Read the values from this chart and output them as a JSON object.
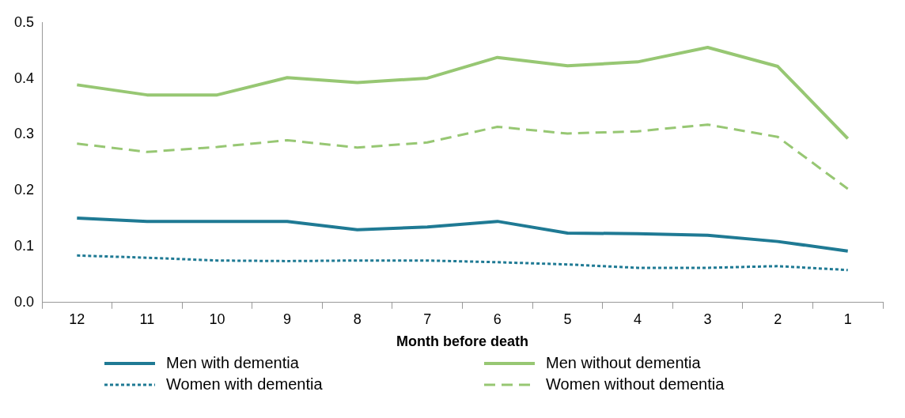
{
  "chart_data": {
    "type": "line",
    "xlabel": "Month before death",
    "categories": [
      "12",
      "11",
      "10",
      "9",
      "8",
      "7",
      "6",
      "5",
      "4",
      "3",
      "2",
      "1"
    ],
    "ylim": [
      0,
      0.5
    ],
    "yticks": [
      {
        "value": 0,
        "label": "0.0"
      },
      0.1,
      0.2,
      0.3,
      0.4,
      0.5
    ],
    "grid": false,
    "legend": "bottom",
    "series": [
      {
        "name": "Men with dementia",
        "color": "#1f7a94",
        "line_style": "solid",
        "values": [
          0.151,
          0.145,
          0.145,
          0.145,
          0.13,
          0.135,
          0.145,
          0.124,
          0.123,
          0.12,
          0.109,
          0.092
        ]
      },
      {
        "name": "Men without dementia",
        "color": "#97c773",
        "line_style": "solid",
        "values": [
          0.389,
          0.371,
          0.371,
          0.402,
          0.393,
          0.401,
          0.438,
          0.423,
          0.43,
          0.456,
          0.422,
          0.293
        ]
      },
      {
        "name": "Women with dementia",
        "color": "#1f7a94",
        "line_style": "dotted",
        "values": [
          0.084,
          0.08,
          0.075,
          0.074,
          0.075,
          0.075,
          0.072,
          0.068,
          0.062,
          0.062,
          0.065,
          0.058
        ]
      },
      {
        "name": "Women without dementia",
        "color": "#97c773",
        "line_style": "dashed",
        "values": [
          0.284,
          0.269,
          0.278,
          0.29,
          0.277,
          0.286,
          0.314,
          0.302,
          0.306,
          0.318,
          0.296,
          0.203
        ]
      }
    ]
  }
}
